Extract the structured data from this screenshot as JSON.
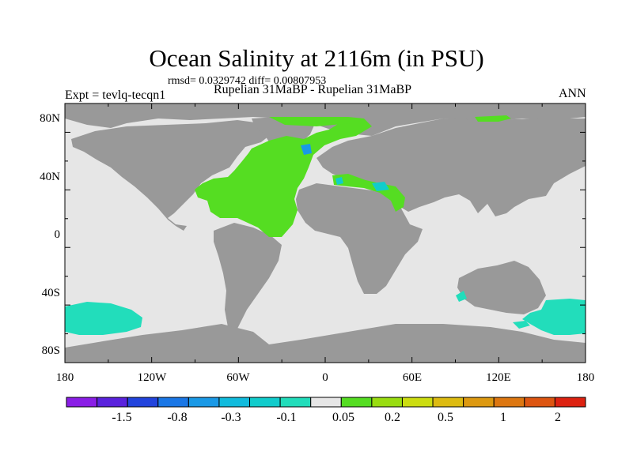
{
  "title": "Ocean Salinity at 2116m (in PSU)",
  "stats": "rmsd= 0.0329742 diff= 0.00807953",
  "expt": "Expt = tevlq-tecqn1",
  "subtitle": "Rupelian  31MaBP - Rupelian  31MaBP",
  "season": "ANN",
  "map": {
    "projection": "cylindrical equidistant",
    "lat_labels": [
      "80N",
      "40N",
      "0",
      "40S",
      "80S"
    ],
    "lon_labels": [
      "180",
      "120W",
      "60W",
      "0",
      "60E",
      "120E",
      "180"
    ],
    "colors": {
      "land": "#999999",
      "ocean_near_zero": "#e6e6e6",
      "positive_anomaly": "#55dd22",
      "negative_anomaly": "#22ddbb",
      "cyan_anomaly": "#11cccc",
      "blue_anomaly": "#1a99e6"
    }
  },
  "colorbar": {
    "colors": [
      "#8a1ee6",
      "#5a22dd",
      "#2244dd",
      "#1a77e6",
      "#1a99e6",
      "#11bbdd",
      "#11cccc",
      "#22ddbb",
      "#e6e6e6",
      "#55dd22",
      "#99dd11",
      "#ccdd11",
      "#ddbb11",
      "#dd9911",
      "#dd7711",
      "#dd5511",
      "#dd2211"
    ],
    "labels": [
      "-1.5",
      "-0.8",
      "-0.3",
      "-0.1",
      "0.05",
      "0.2",
      "0.5",
      "1",
      "2"
    ]
  }
}
